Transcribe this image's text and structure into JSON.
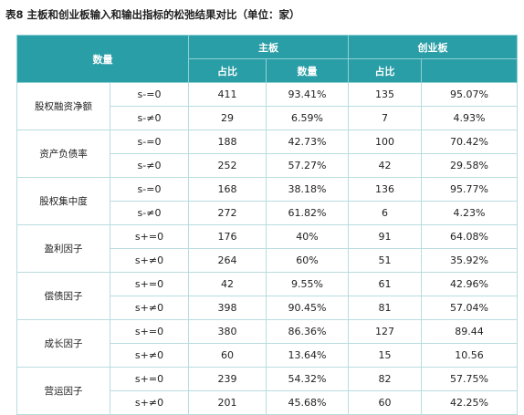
{
  "title": "表8  主板和创业板输入和输出指标的松弛结果对比（单位：家）",
  "header": {
    "corner": "数量",
    "groups": [
      "主板",
      "创业板"
    ],
    "subheaders": [
      "占比",
      "数量",
      "占比"
    ]
  },
  "rows": [
    {
      "label": "股权融资净额",
      "items": [
        {
          "condition": "s-=0",
          "cells": [
            "411",
            "93.41%",
            "135",
            "95.07%"
          ]
        },
        {
          "condition": "s-≠0",
          "cells": [
            "29",
            "6.59%",
            "7",
            "4.93%"
          ]
        }
      ]
    },
    {
      "label": "资产负债率",
      "items": [
        {
          "condition": "s-=0",
          "cells": [
            "188",
            "42.73%",
            "100",
            "70.42%"
          ]
        },
        {
          "condition": "s-≠0",
          "cells": [
            "252",
            "57.27%",
            "42",
            "29.58%"
          ]
        }
      ]
    },
    {
      "label": "股权集中度",
      "items": [
        {
          "condition": "s-=0",
          "cells": [
            "168",
            "38.18%",
            "136",
            "95.77%"
          ]
        },
        {
          "condition": "s-≠0",
          "cells": [
            "272",
            "61.82%",
            "6",
            "4.23%"
          ]
        }
      ]
    },
    {
      "label": "盈利因子",
      "items": [
        {
          "condition": "s+=0",
          "cells": [
            "176",
            "40%",
            "91",
            "64.08%"
          ]
        },
        {
          "condition": "s+≠0",
          "cells": [
            "264",
            "60%",
            "51",
            "35.92%"
          ]
        }
      ]
    },
    {
      "label": "偿债因子",
      "items": [
        {
          "condition": "s+=0",
          "cells": [
            "42",
            "9.55%",
            "61",
            "42.96%"
          ]
        },
        {
          "condition": "s+≠0",
          "cells": [
            "398",
            "90.45%",
            "81",
            "57.04%"
          ]
        }
      ]
    },
    {
      "label": "成长因子",
      "items": [
        {
          "condition": "s+=0",
          "cells": [
            "380",
            "86.36%",
            "127",
            "89.44"
          ]
        },
        {
          "condition": "s+≠0",
          "cells": [
            "60",
            "13.64%",
            "15",
            "10.56"
          ]
        }
      ]
    },
    {
      "label": "营运因子",
      "items": [
        {
          "condition": "s+=0",
          "cells": [
            "239",
            "54.32%",
            "82",
            "57.75%"
          ]
        },
        {
          "condition": "s+≠0",
          "cells": [
            "201",
            "45.68%",
            "60",
            "42.25%"
          ]
        }
      ]
    }
  ]
}
